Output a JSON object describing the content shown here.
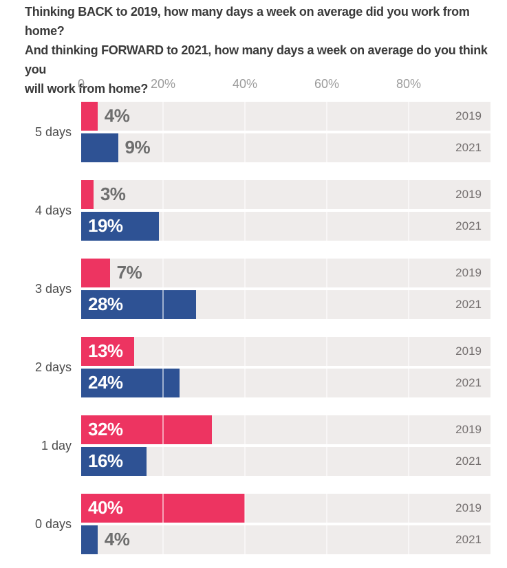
{
  "title": {
    "lines": [
      "Thinking BACK to 2019, how many days a week on average did you work from home?",
      "And thinking FORWARD to 2021, how many days a week on average do you think you",
      "will work from home?"
    ]
  },
  "chart_data": {
    "type": "bar",
    "orientation": "horizontal",
    "title": "Thinking BACK to 2019, how many days a week on average did you work from home? And thinking FORWARD to 2021, how many days a week on average do you think you will work from home?",
    "categories": [
      "5 days",
      "4 days",
      "3 days",
      "2 days",
      "1 day",
      "0 days"
    ],
    "series": [
      {
        "name": "2019",
        "color": "#ed3461",
        "values": [
          4,
          3,
          7,
          13,
          32,
          40
        ]
      },
      {
        "name": "2021",
        "color": "#2e5294",
        "values": [
          9,
          19,
          28,
          24,
          16,
          4
        ]
      }
    ],
    "value_suffix": "%",
    "x_axis": {
      "tick_labels": [
        "0",
        "20%",
        "40%",
        "60%",
        "80%"
      ],
      "tick_values": [
        0,
        20,
        40,
        60,
        80
      ],
      "max": 100
    },
    "grid": true,
    "legend_position": "right-of-each-bar",
    "colors": {
      "track_background": "#efeceb",
      "gridline": "#ffffff",
      "value_label_outside": "#6e6e6e",
      "value_label_inside": "#ffffff",
      "year_label": "#757070",
      "axis_label": "#9b9b9b",
      "title_text": "#3a3a3a",
      "category_label": "#4d4d4d"
    }
  }
}
